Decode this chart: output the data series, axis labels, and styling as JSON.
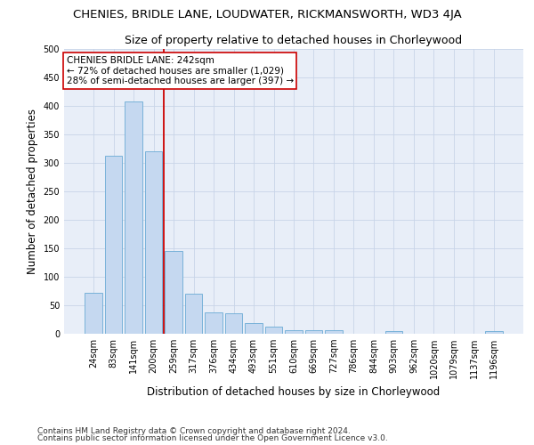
{
  "title": "CHENIES, BRIDLE LANE, LOUDWATER, RICKMANSWORTH, WD3 4JA",
  "subtitle": "Size of property relative to detached houses in Chorleywood",
  "xlabel": "Distribution of detached houses by size in Chorleywood",
  "ylabel": "Number of detached properties",
  "categories": [
    "24sqm",
    "83sqm",
    "141sqm",
    "200sqm",
    "259sqm",
    "317sqm",
    "376sqm",
    "434sqm",
    "493sqm",
    "551sqm",
    "610sqm",
    "669sqm",
    "727sqm",
    "786sqm",
    "844sqm",
    "903sqm",
    "962sqm",
    "1020sqm",
    "1079sqm",
    "1137sqm",
    "1196sqm"
  ],
  "values": [
    72,
    313,
    408,
    320,
    145,
    70,
    37,
    36,
    18,
    12,
    7,
    6,
    6,
    0,
    0,
    4,
    0,
    0,
    0,
    0,
    4
  ],
  "bar_color": "#c5d8f0",
  "bar_edge_color": "#6aaad4",
  "vline_x_bar_index": 3.5,
  "vline_color": "#cc0000",
  "annotation_text": "CHENIES BRIDLE LANE: 242sqm\n← 72% of detached houses are smaller (1,029)\n28% of semi-detached houses are larger (397) →",
  "annotation_box_color": "#ffffff",
  "annotation_box_edgecolor": "#cc0000",
  "ylim": [
    0,
    500
  ],
  "yticks": [
    0,
    50,
    100,
    150,
    200,
    250,
    300,
    350,
    400,
    450,
    500
  ],
  "footer_line1": "Contains HM Land Registry data © Crown copyright and database right 2024.",
  "footer_line2": "Contains public sector information licensed under the Open Government Licence v3.0.",
  "bg_color": "#ffffff",
  "plot_bg_color": "#e8eef8",
  "grid_color": "#c8d4e8",
  "title_fontsize": 9.5,
  "subtitle_fontsize": 9,
  "axis_label_fontsize": 8.5,
  "tick_fontsize": 7,
  "footer_fontsize": 6.5,
  "annotation_fontsize": 7.5
}
